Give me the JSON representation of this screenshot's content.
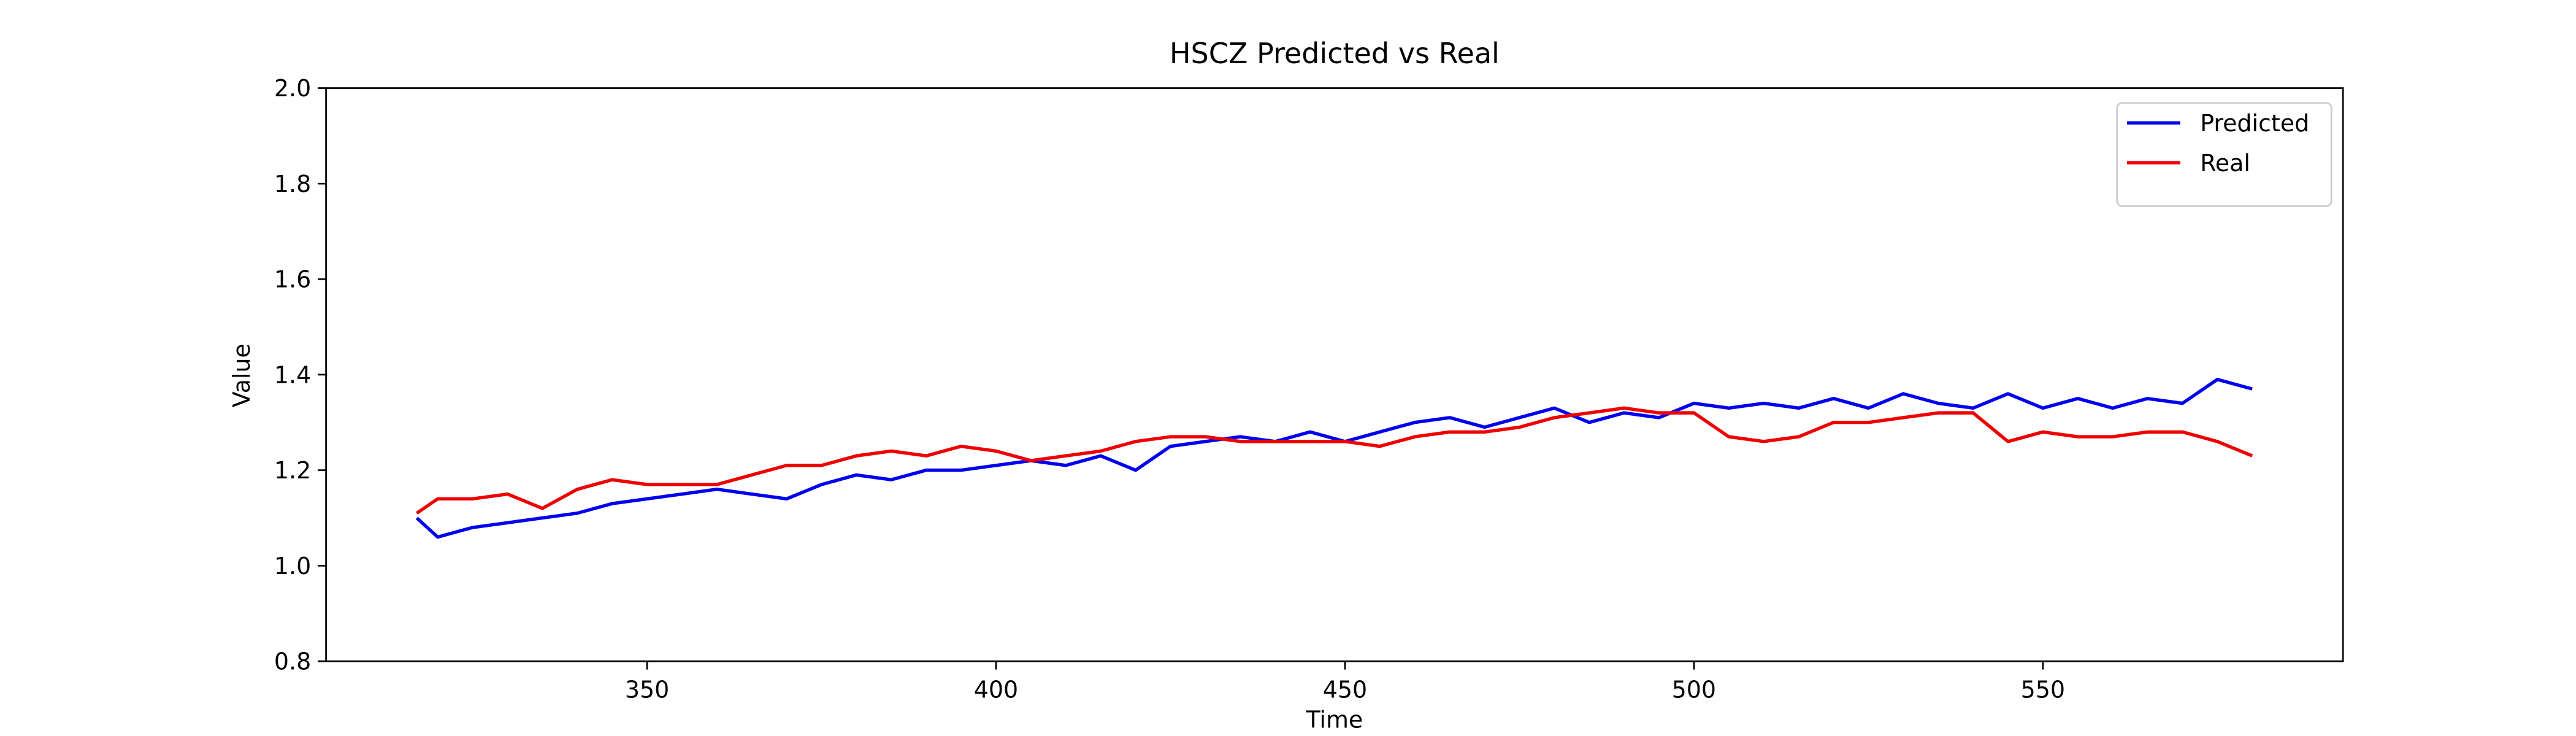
{
  "chart_data": {
    "type": "line",
    "title": "HSCZ Predicted vs Real",
    "x_label": "Time",
    "y_label": "Value",
    "x": [
      317,
      320,
      325,
      330,
      335,
      340,
      345,
      350,
      355,
      360,
      365,
      370,
      375,
      380,
      385,
      390,
      395,
      400,
      405,
      410,
      415,
      420,
      425,
      430,
      435,
      440,
      445,
      450,
      455,
      460,
      465,
      470,
      475,
      480,
      485,
      490,
      495,
      500,
      505,
      510,
      515,
      520,
      525,
      530,
      535,
      540,
      545,
      550,
      555,
      560,
      565,
      570,
      575,
      580
    ],
    "series": [
      {
        "name": "Predicted",
        "color": "#0000ee",
        "values": [
          1.1,
          1.06,
          1.08,
          1.09,
          1.1,
          1.11,
          1.13,
          1.14,
          1.15,
          1.16,
          1.15,
          1.14,
          1.17,
          1.19,
          1.18,
          1.2,
          1.2,
          1.21,
          1.22,
          1.21,
          1.23,
          1.2,
          1.25,
          1.26,
          1.27,
          1.26,
          1.28,
          1.26,
          1.28,
          1.3,
          1.31,
          1.29,
          1.31,
          1.33,
          1.3,
          1.32,
          1.31,
          1.34,
          1.33,
          1.34,
          1.33,
          1.35,
          1.33,
          1.36,
          1.34,
          1.33,
          1.36,
          1.33,
          1.35,
          1.33,
          1.35,
          1.34,
          1.39,
          1.37
        ]
      },
      {
        "name": "Real",
        "color": "#ee0000",
        "values": [
          1.11,
          1.14,
          1.14,
          1.15,
          1.12,
          1.16,
          1.18,
          1.17,
          1.17,
          1.17,
          1.19,
          1.21,
          1.21,
          1.23,
          1.24,
          1.23,
          1.25,
          1.24,
          1.22,
          1.23,
          1.24,
          1.26,
          1.27,
          1.27,
          1.26,
          1.26,
          1.26,
          1.26,
          1.25,
          1.27,
          1.28,
          1.28,
          1.29,
          1.31,
          1.32,
          1.33,
          1.32,
          1.32,
          1.27,
          1.26,
          1.27,
          1.3,
          1.3,
          1.31,
          1.32,
          1.32,
          1.26,
          1.28,
          1.27,
          1.27,
          1.28,
          1.28,
          1.26,
          1.23
        ]
      }
    ],
    "xlim": [
      304,
      593
    ],
    "xticks": [
      350,
      400,
      450,
      500,
      550
    ],
    "ylim": [
      0.8,
      2.0
    ],
    "yticks": [
      0.8,
      {
        "value": 1.0,
        "label": "1.0"
      },
      1.2,
      1.4,
      1.6,
      1.8,
      {
        "value": 2.0,
        "label": "2.0"
      }
    ],
    "legend": "upper right",
    "grid": false
  }
}
